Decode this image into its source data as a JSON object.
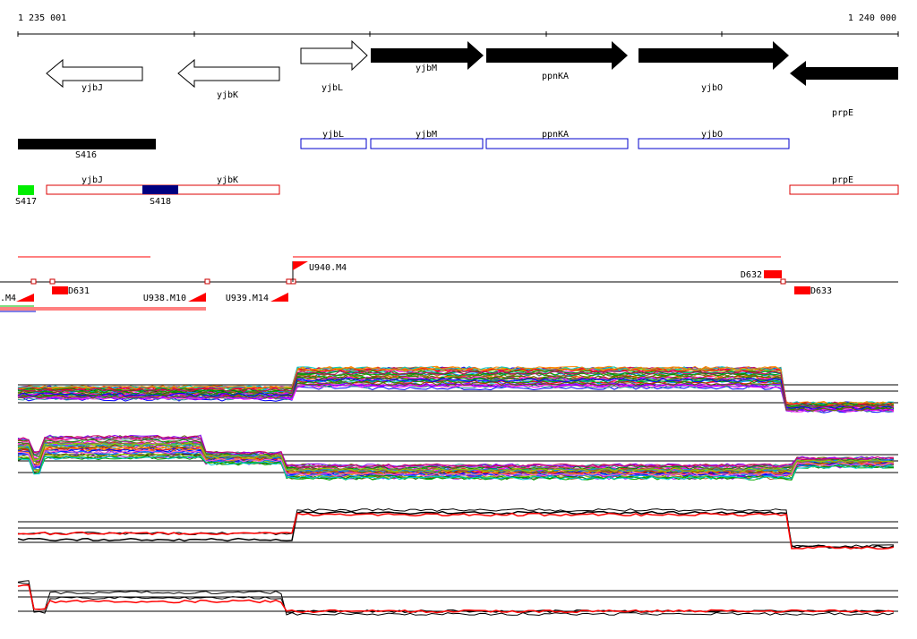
{
  "ruler": {
    "start_label": "1 235 001",
    "end_label": "1 240 000"
  },
  "genes": [
    {
      "name": "yjbJ",
      "strand": "-",
      "essential": false
    },
    {
      "name": "yjbK",
      "strand": "-",
      "essential": false
    },
    {
      "name": "yjbL",
      "strand": "+",
      "essential": false
    },
    {
      "name": "yjbM",
      "strand": "+",
      "essential": true
    },
    {
      "name": "ppnKA",
      "strand": "+",
      "essential": true
    },
    {
      "name": "yjbO",
      "strand": "+",
      "essential": true
    },
    {
      "name": "prpE",
      "strand": "-",
      "essential": true
    }
  ],
  "segments": [
    {
      "label": "S416",
      "color": "#000000"
    },
    {
      "label": "S417",
      "color": "#00ee00"
    },
    {
      "label": "S418",
      "color": "#000080"
    }
  ],
  "transcript_boxes": {
    "blue": [
      "yjbL",
      "yjbM",
      "ppnKA",
      "yjbO"
    ],
    "red": [
      "yjbJ",
      "yjbK",
      "prpE"
    ]
  },
  "upshifts": [
    "U940.M4",
    "U938.M10",
    "U939.M14"
  ],
  "downshifts": [
    "D631",
    "D632",
    "D633"
  ],
  "partial_label": ".M4",
  "colors": {
    "blue_box": "#0000cc",
    "red_box": "#dd0000",
    "marker_red": "#ff0000"
  }
}
